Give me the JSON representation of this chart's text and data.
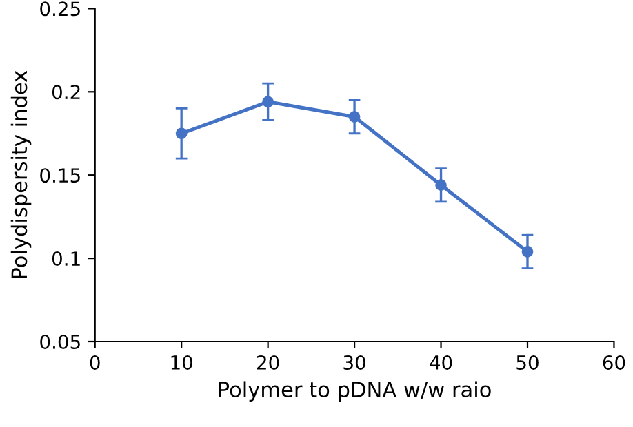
{
  "chart_data": {
    "type": "line",
    "xlabel": "Polymer to pDNA w/w raio",
    "ylabel": "Polydispersity index",
    "x": [
      10,
      20,
      30,
      40,
      50
    ],
    "series": [
      {
        "color": "#4472c4",
        "values": [
          0.175,
          0.194,
          0.185,
          0.144,
          0.104
        ],
        "errors": [
          0.015,
          0.011,
          0.01,
          0.01,
          0.01
        ]
      }
    ],
    "xlim": [
      0,
      60
    ],
    "xticks": [
      0,
      10,
      20,
      30,
      40,
      50,
      60
    ],
    "ylim": [
      0.05,
      0.25
    ],
    "yticks": [
      0.05,
      0.1,
      0.15,
      0.2,
      0.25
    ],
    "marker": "circle",
    "line_style": "solid",
    "grid": false
  }
}
